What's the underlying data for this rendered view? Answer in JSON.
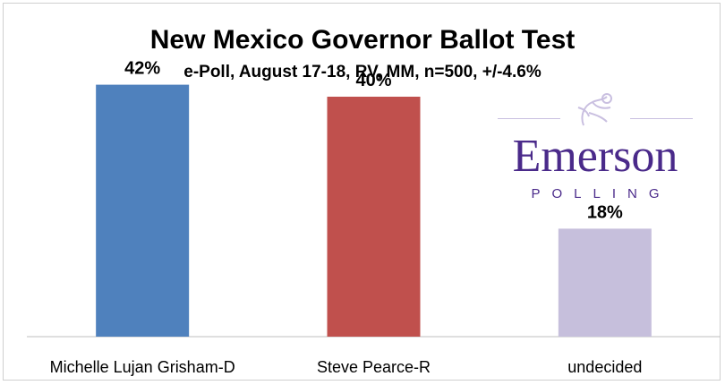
{
  "chart_data": {
    "type": "bar",
    "title": "New Mexico Governor Ballot Test",
    "subtitle": "e-Poll, August 17-18, RV, MM, n=500, +/-4.6%",
    "categories": [
      "Michelle Lujan Grisham-D",
      "Steve Pearce-R",
      "undecided"
    ],
    "values": [
      42,
      40,
      18
    ],
    "data_labels": [
      "42%",
      "40%",
      "18%"
    ],
    "colors": [
      "#4f81bd",
      "#c0504d",
      "#c6bfdc"
    ],
    "ylim": [
      0,
      50
    ],
    "grid": false,
    "legend": "none"
  },
  "logo": {
    "name": "Emerson",
    "tagline": "POLLING",
    "color": "#4a2a8a",
    "icon": "lion-crest-icon"
  }
}
